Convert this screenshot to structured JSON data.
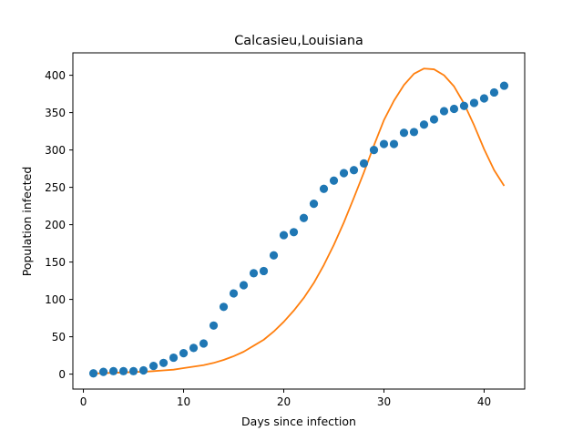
{
  "chart_data": {
    "type": "scatter",
    "title": "Calcasieu,Louisiana",
    "xlabel": "Days since infection",
    "ylabel": "Population infected",
    "xlim": [
      -1.05,
      44.05
    ],
    "ylim": [
      -20,
      430
    ],
    "xticks": [
      0,
      10,
      20,
      30,
      40
    ],
    "yticks": [
      0,
      50,
      100,
      150,
      200,
      250,
      300,
      350,
      400
    ],
    "grid": false,
    "legend": "none",
    "series": [
      {
        "kind": "scatter",
        "color": "#1f77b4",
        "x": [
          1,
          2,
          3,
          4,
          5,
          6,
          7,
          8,
          9,
          10,
          11,
          12,
          13,
          14,
          15,
          16,
          17,
          18,
          19,
          20,
          21,
          22,
          23,
          24,
          25,
          26,
          27,
          28,
          29,
          30,
          31,
          32,
          33,
          34,
          35,
          36,
          37,
          38,
          39,
          40,
          41,
          42
        ],
        "y": [
          1,
          3,
          4,
          4,
          4,
          5,
          11,
          15,
          22,
          28,
          35,
          41,
          65,
          90,
          108,
          119,
          135,
          138,
          159,
          186,
          190,
          209,
          228,
          248,
          259,
          269,
          273,
          282,
          300,
          308,
          308,
          323,
          324,
          334,
          341,
          352,
          355,
          359,
          363,
          369,
          377,
          386
        ]
      },
      {
        "kind": "line",
        "color": "#ff7f0e",
        "x": [
          1,
          2,
          3,
          4,
          5,
          6,
          7,
          8,
          9,
          10,
          11,
          12,
          13,
          14,
          15,
          16,
          17,
          18,
          19,
          20,
          21,
          22,
          23,
          24,
          25,
          26,
          27,
          28,
          29,
          30,
          31,
          32,
          33,
          34,
          35,
          36,
          37,
          38,
          39,
          40,
          41,
          42
        ],
        "y": [
          1,
          1,
          2,
          2,
          3,
          3,
          4,
          5,
          6,
          8,
          10,
          12,
          15,
          19,
          24,
          30,
          38,
          46,
          57,
          70,
          85,
          102,
          122,
          146,
          173,
          203,
          236,
          270,
          306,
          340,
          366,
          387,
          402,
          409,
          408,
          400,
          385,
          362,
          333,
          301,
          273,
          252
        ]
      }
    ]
  }
}
